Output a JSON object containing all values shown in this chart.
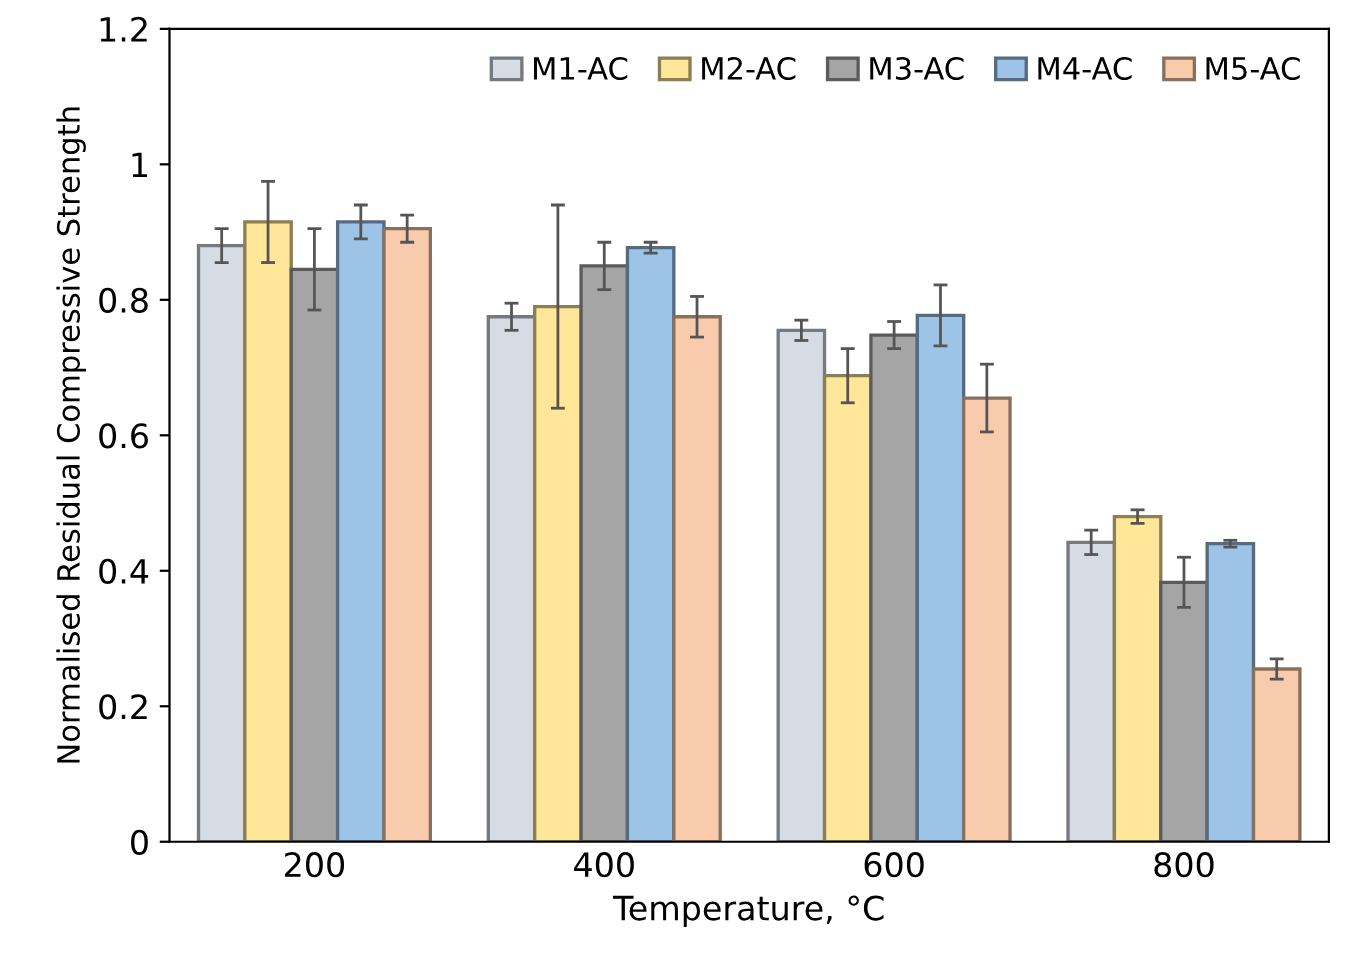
{
  "chart_data": {
    "type": "bar",
    "xlabel": "Temperature, °C",
    "ylabel": "Normalised Residual Compressive Strength",
    "categories": [
      "200",
      "400",
      "600",
      "800"
    ],
    "series": [
      {
        "name": "M1-AC",
        "color": "#d6dce4",
        "values": [
          0.88,
          0.775,
          0.755,
          0.442
        ],
        "errors": [
          0.025,
          0.02,
          0.015,
          0.018
        ]
      },
      {
        "name": "M2-AC",
        "color": "#ffe699",
        "values": [
          0.915,
          0.79,
          0.688,
          0.48
        ],
        "errors": [
          0.06,
          0.15,
          0.04,
          0.01
        ]
      },
      {
        "name": "M3-AC",
        "color": "#a5a5a5",
        "values": [
          0.845,
          0.85,
          0.748,
          0.383
        ],
        "errors": [
          0.06,
          0.035,
          0.02,
          0.037
        ]
      },
      {
        "name": "M4-AC",
        "color": "#9dc3e6",
        "values": [
          0.915,
          0.877,
          0.777,
          0.44
        ],
        "errors": [
          0.025,
          0.008,
          0.045,
          0.005
        ]
      },
      {
        "name": "M5-AC",
        "color": "#f8cbad",
        "values": [
          0.905,
          0.775,
          0.655,
          0.255
        ],
        "errors": [
          0.02,
          0.03,
          0.05,
          0.015
        ]
      }
    ],
    "ylim": [
      0,
      1.2
    ],
    "yticks": [
      0,
      0.2,
      0.4,
      0.6,
      0.8,
      1,
      1.2
    ],
    "grid": false,
    "legend": "top right"
  }
}
